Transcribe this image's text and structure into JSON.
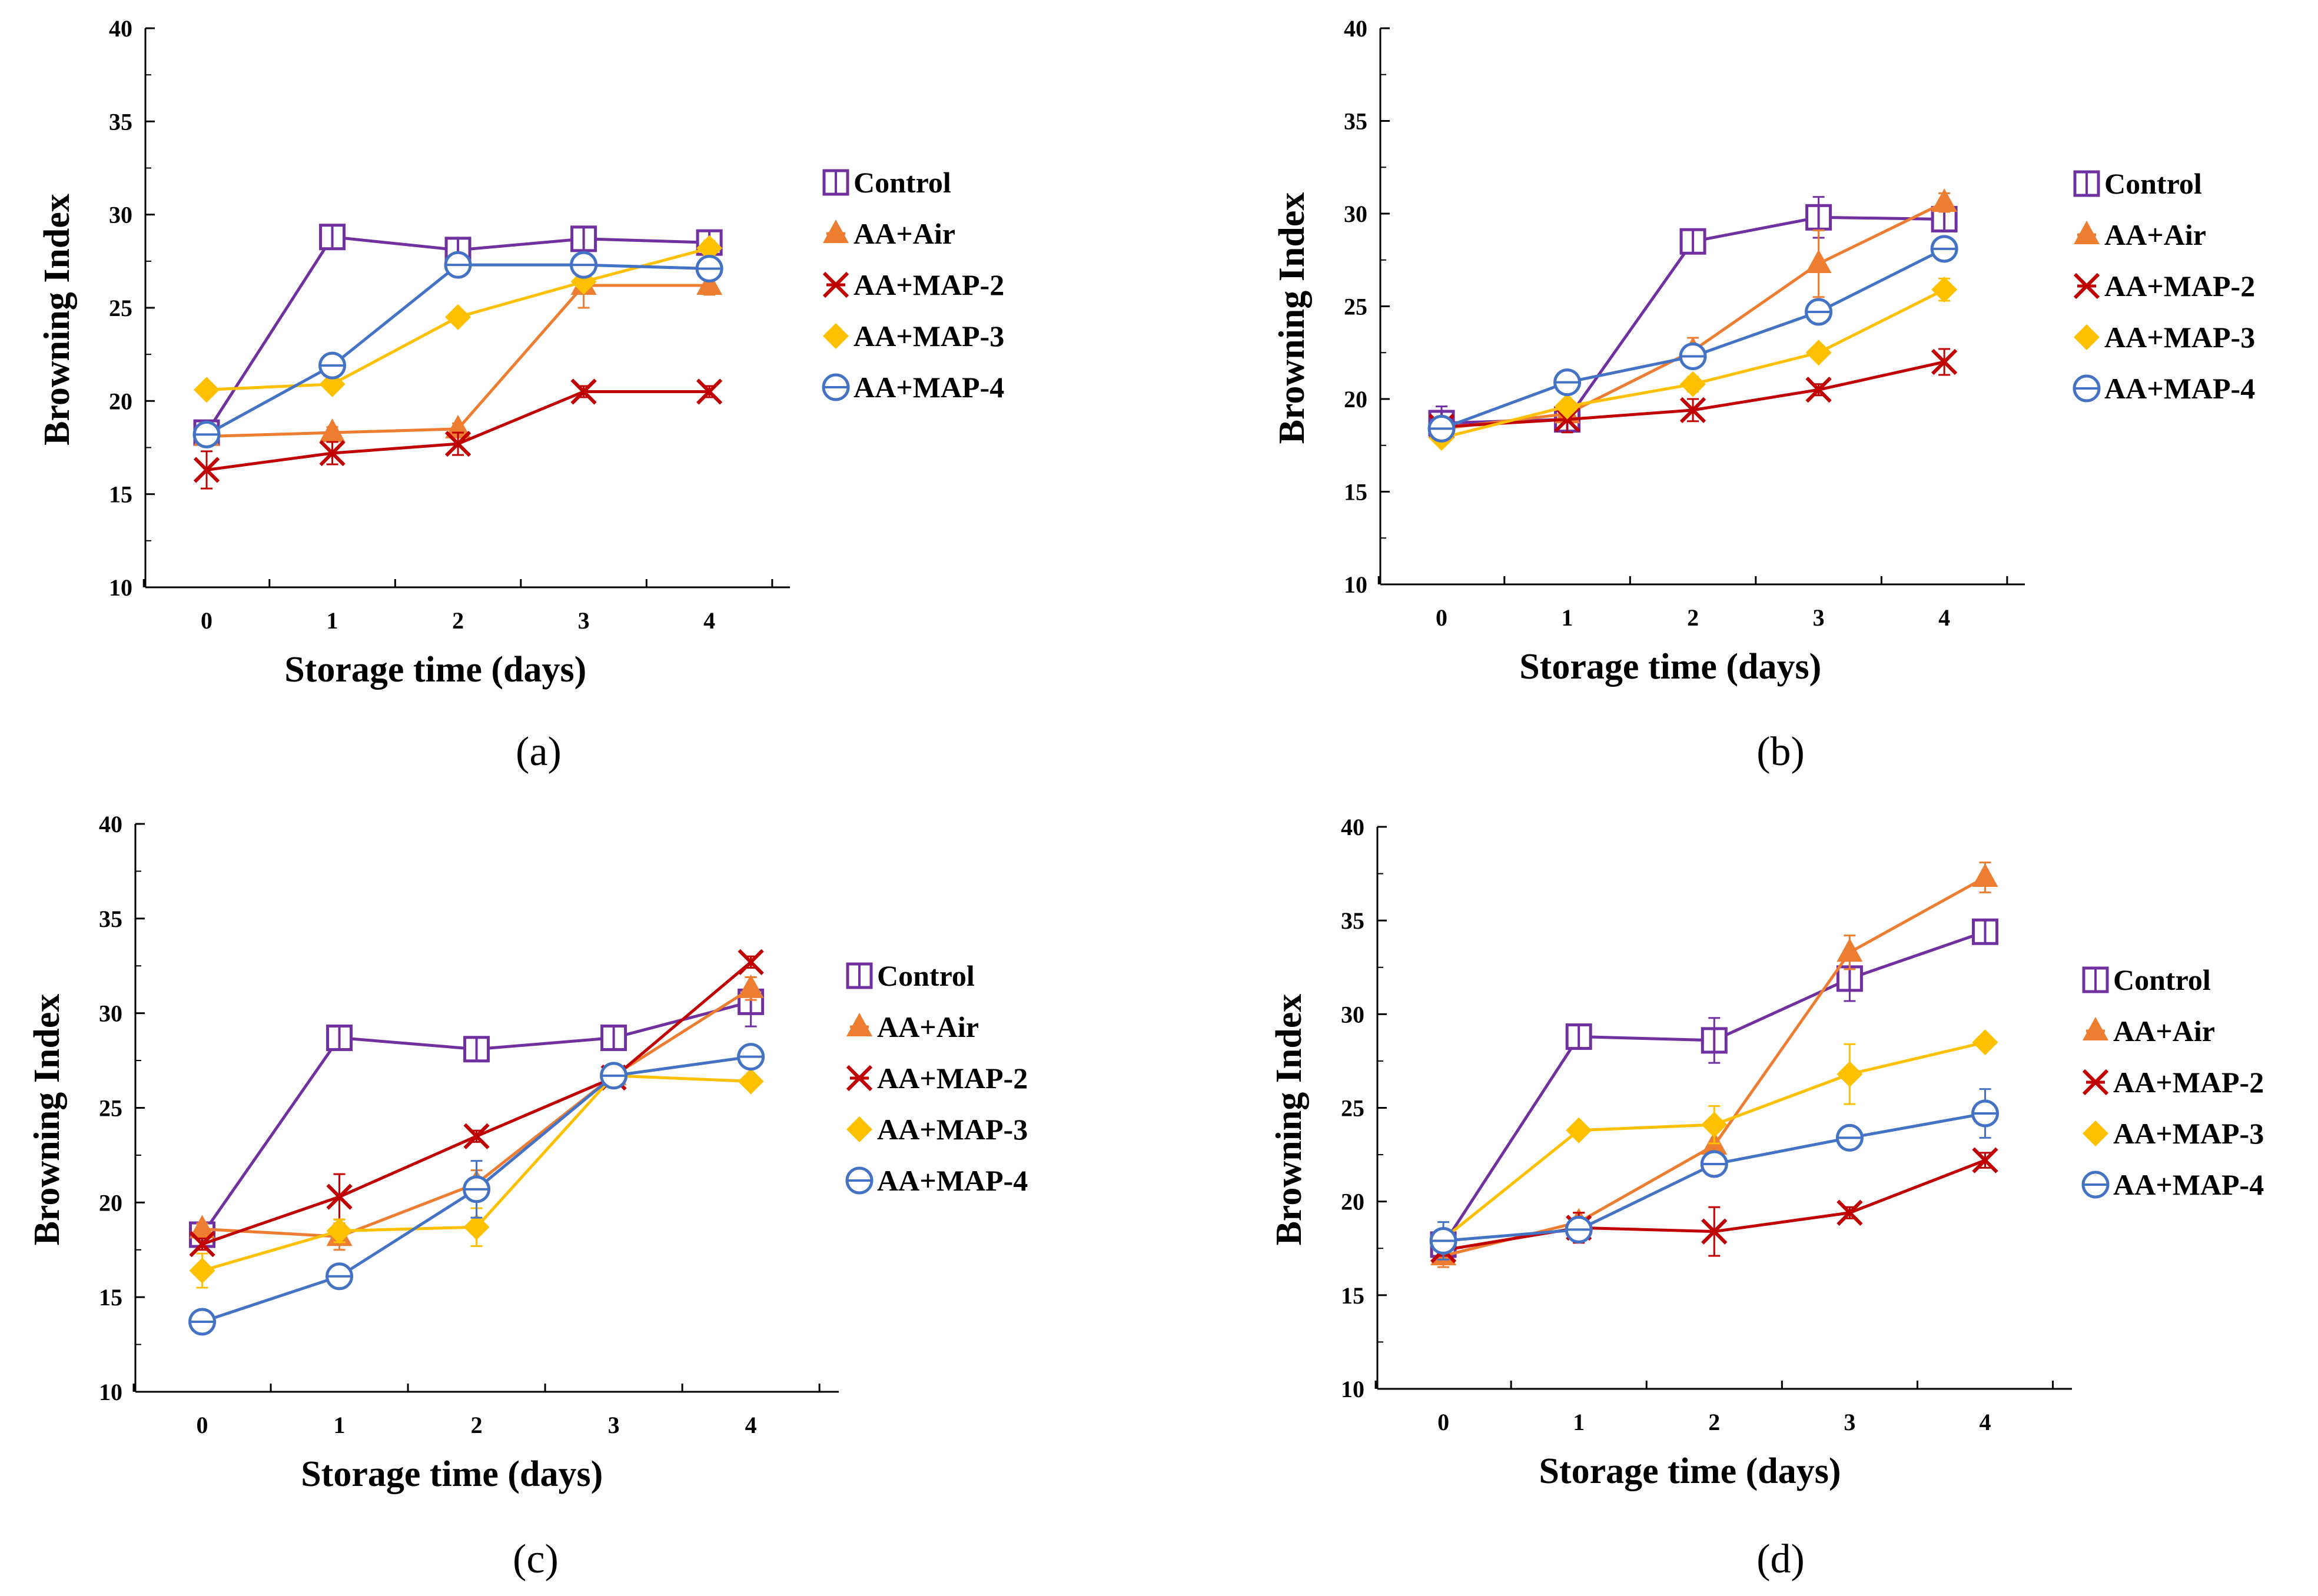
{
  "series_styles": [
    {
      "name": "Control",
      "color": "#7030A0",
      "marker": "square-cross"
    },
    {
      "name": "AA+Air",
      "color": "#ED7D31",
      "marker": "triangle"
    },
    {
      "name": "AA+MAP-2",
      "color": "#C00000",
      "marker": "star-x"
    },
    {
      "name": "AA+MAP-3",
      "color": "#FFC000",
      "marker": "diamond"
    },
    {
      "name": "AA+MAP-4",
      "color": "#4472C4",
      "marker": "circle-dash"
    }
  ],
  "chart_data": [
    {
      "type": "line",
      "panel_label": "(a)",
      "xlabel": "Storage time (days)",
      "ylabel": "Browning Index",
      "x": [
        0,
        1,
        2,
        3,
        4
      ],
      "ylim": [
        10,
        40
      ],
      "yticks": [
        10,
        15,
        20,
        25,
        30,
        35,
        40
      ],
      "legend_position": "right",
      "series": [
        {
          "name": "Control",
          "values": [
            18.3,
            28.8,
            28.1,
            28.7,
            28.5
          ],
          "errors": [
            0.3,
            0.3,
            0.4,
            0.3,
            0.3
          ]
        },
        {
          "name": "AA+Air",
          "values": [
            18.1,
            18.3,
            18.5,
            26.2,
            26.2
          ],
          "errors": [
            0.3,
            0.3,
            0.3,
            1.2,
            0.5
          ]
        },
        {
          "name": "AA+MAP-2",
          "values": [
            16.3,
            17.2,
            17.7,
            20.5,
            20.5
          ],
          "errors": [
            1.0,
            0.6,
            0.6,
            0.3,
            0.3
          ]
        },
        {
          "name": "AA+MAP-3",
          "values": [
            20.6,
            20.9,
            24.5,
            26.4,
            28.2
          ],
          "errors": [
            0.2,
            0.2,
            0.2,
            0.3,
            0.4
          ]
        },
        {
          "name": "AA+MAP-4",
          "values": [
            18.2,
            21.9,
            27.3,
            27.3,
            27.1
          ],
          "errors": [
            0.3,
            0.3,
            0.3,
            0.3,
            0.3
          ]
        }
      ]
    },
    {
      "type": "line",
      "panel_label": "(b)",
      "xlabel": "Storage time (days)",
      "ylabel": "Browning Index",
      "x": [
        0,
        1,
        2,
        3,
        4
      ],
      "ylim": [
        10,
        40
      ],
      "yticks": [
        10,
        15,
        20,
        25,
        30,
        35,
        40
      ],
      "legend_position": "right",
      "series": [
        {
          "name": "Control",
          "values": [
            18.7,
            18.9,
            28.5,
            29.8,
            29.7
          ],
          "errors": [
            0.9,
            0.4,
            0.4,
            1.1,
            0.4
          ]
        },
        {
          "name": "AA+Air",
          "values": [
            18.4,
            19.2,
            22.6,
            27.3,
            30.6
          ],
          "errors": [
            0.3,
            0.4,
            0.7,
            1.8,
            0.5
          ]
        },
        {
          "name": "AA+MAP-2",
          "values": [
            18.5,
            18.9,
            19.4,
            20.5,
            22.0
          ],
          "errors": [
            0.3,
            0.7,
            0.6,
            0.3,
            0.7
          ]
        },
        {
          "name": "AA+MAP-3",
          "values": [
            17.9,
            19.6,
            20.8,
            22.5,
            25.9
          ],
          "errors": [
            0.3,
            0.3,
            0.4,
            0.3,
            0.6
          ]
        },
        {
          "name": "AA+MAP-4",
          "values": [
            18.4,
            20.9,
            22.3,
            24.7,
            28.1
          ],
          "errors": [
            0.3,
            0.6,
            0.4,
            0.3,
            0.6
          ]
        }
      ]
    },
    {
      "type": "line",
      "panel_label": "(c)",
      "xlabel": "Storage time (days)",
      "ylabel": "Browning Index",
      "x": [
        0,
        1,
        2,
        3,
        4
      ],
      "ylim": [
        10,
        40
      ],
      "yticks": [
        10,
        15,
        20,
        25,
        30,
        35,
        40
      ],
      "legend_position": "right",
      "series": [
        {
          "name": "Control",
          "values": [
            18.3,
            28.7,
            28.1,
            28.7,
            30.6
          ],
          "errors": [
            0.3,
            0.3,
            0.3,
            0.3,
            1.3
          ]
        },
        {
          "name": "AA+Air",
          "values": [
            18.6,
            18.2,
            21.0,
            26.7,
            31.3
          ],
          "errors": [
            0.3,
            0.7,
            0.7,
            0.3,
            0.6
          ]
        },
        {
          "name": "AA+MAP-2",
          "values": [
            17.8,
            20.3,
            23.5,
            26.6,
            32.7
          ],
          "errors": [
            0.3,
            1.2,
            0.3,
            0.3,
            0.3
          ]
        },
        {
          "name": "AA+MAP-3",
          "values": [
            16.4,
            18.5,
            18.7,
            26.7,
            26.4
          ],
          "errors": [
            0.9,
            0.6,
            1.0,
            0.3,
            0.3
          ]
        },
        {
          "name": "AA+MAP-4",
          "values": [
            13.7,
            16.1,
            20.7,
            26.7,
            27.7
          ],
          "errors": [
            0.3,
            0.3,
            1.5,
            0.3,
            0.3
          ]
        }
      ]
    },
    {
      "type": "line",
      "panel_label": "(d)",
      "xlabel": "Storage time (days)",
      "ylabel": "Browning Index",
      "x": [
        0,
        1,
        2,
        3,
        4
      ],
      "ylim": [
        10,
        40
      ],
      "yticks": [
        10,
        15,
        20,
        25,
        30,
        35,
        40
      ],
      "legend_position": "right",
      "series": [
        {
          "name": "Control",
          "values": [
            17.7,
            28.8,
            28.6,
            31.9,
            34.4
          ],
          "errors": [
            0.4,
            0.4,
            1.2,
            1.2,
            0.4
          ]
        },
        {
          "name": "AA+Air",
          "values": [
            17.1,
            18.9,
            23.0,
            33.3,
            37.3
          ],
          "errors": [
            0.6,
            0.5,
            1.0,
            0.9,
            0.8
          ]
        },
        {
          "name": "AA+MAP-2",
          "values": [
            17.4,
            18.6,
            18.4,
            19.4,
            22.2
          ],
          "errors": [
            0.3,
            0.8,
            1.3,
            0.3,
            0.4
          ]
        },
        {
          "name": "AA+MAP-3",
          "values": [
            18.0,
            23.8,
            24.1,
            26.8,
            28.5
          ],
          "errors": [
            0.3,
            0.3,
            1.0,
            1.6,
            0.3
          ]
        },
        {
          "name": "AA+MAP-4",
          "values": [
            17.9,
            18.5,
            22.0,
            23.4,
            24.7
          ],
          "errors": [
            1.0,
            0.5,
            0.4,
            0.4,
            1.3
          ]
        }
      ]
    }
  ]
}
